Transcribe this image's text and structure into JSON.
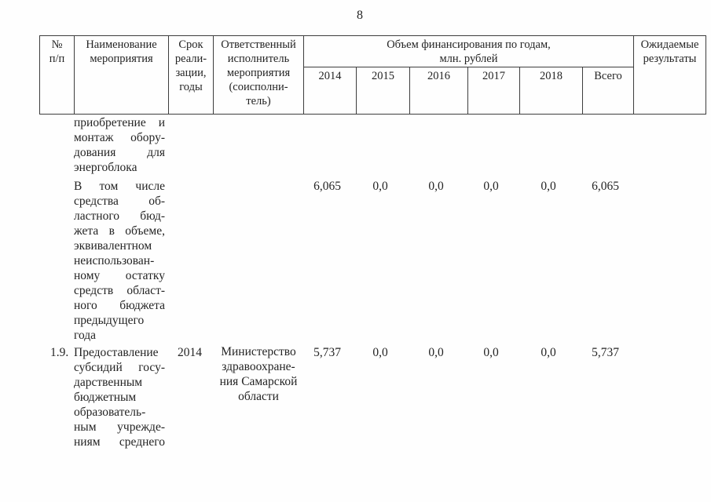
{
  "page": {
    "number": "8"
  },
  "table": {
    "header": {
      "num_lines": [
        "№",
        "п/п"
      ],
      "name_lines": [
        "Наименование",
        "мероприятия"
      ],
      "term_lines": [
        "Срок",
        "реали-",
        "зации,",
        "годы"
      ],
      "executor_lines": [
        "Ответственный",
        "исполнитель",
        "мероприятия",
        "(соисполни-",
        "тель)"
      ],
      "financing_lines": [
        "Объем финансирования по годам,",
        "млн. рублей"
      ],
      "years": [
        "2014",
        "2015",
        "2016",
        "2017",
        "2018",
        "Всего"
      ],
      "results_lines": [
        "Ожидаемые",
        "результаты"
      ]
    },
    "rows": [
      {
        "name_lines": [
          "приобретение и",
          "монтаж обору-",
          "дования для",
          "энергоблока"
        ]
      },
      {
        "name_lines": [
          "В том числе",
          "средства об-",
          "ластного бюд-",
          "жета в объеме,",
          "эквивалентном",
          "неиспользован-",
          "ному остатку",
          "средств област-",
          "ного бюджета",
          "предыдущего",
          "года"
        ],
        "values": [
          "6,065",
          "0,0",
          "0,0",
          "0,0",
          "0,0",
          "6,065"
        ]
      },
      {
        "num": "1.9.",
        "term": "2014",
        "name_lines": [
          "Предоставление",
          "субсидий госу-",
          "дарственным",
          "бюджетным",
          "образователь-",
          "ным учрежде-",
          "ниям среднего"
        ],
        "executor_lines": [
          "Министерство",
          "здравоохране-",
          "ния Самарской",
          "области"
        ],
        "values": [
          "5,737",
          "0,0",
          "0,0",
          "0,0",
          "0,0",
          "5,737"
        ]
      }
    ]
  }
}
